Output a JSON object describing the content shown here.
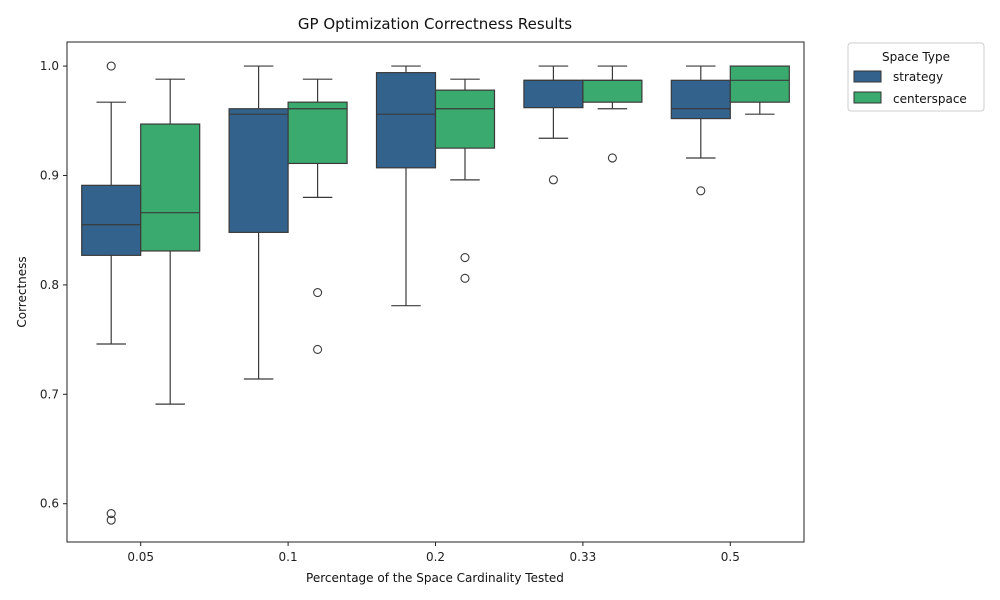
{
  "chart_data": {
    "type": "box",
    "title": "GP Optimization Correctness Results",
    "xlabel": "Percentage of the Space Cardinality Tested",
    "ylabel": "Correctness",
    "categories": [
      "0.05",
      "0.1",
      "0.2",
      "0.33",
      "0.5"
    ],
    "ylim": [
      0.565,
      1.022
    ],
    "yticks": [
      "0.6",
      "0.7",
      "0.8",
      "0.9",
      "1.0"
    ],
    "grid": false,
    "legend": {
      "title": "Space Type",
      "placement": "upper-right-outside"
    },
    "series": [
      {
        "name": "strategy",
        "color": "#33638d",
        "boxes": [
          {
            "category": "0.05",
            "whisker_low": 0.746,
            "q1": 0.827,
            "median": 0.855,
            "q3": 0.891,
            "whisker_high": 0.967,
            "outliers": [
              1.0,
              0.591,
              0.585
            ]
          },
          {
            "category": "0.1",
            "whisker_low": 0.714,
            "q1": 0.848,
            "median": 0.956,
            "q3": 0.961,
            "whisker_high": 1.0,
            "outliers": []
          },
          {
            "category": "0.2",
            "whisker_low": 0.781,
            "q1": 0.907,
            "median": 0.956,
            "q3": 0.994,
            "whisker_high": 1.0,
            "outliers": []
          },
          {
            "category": "0.33",
            "whisker_low": 0.934,
            "q1": 0.962,
            "median": 0.987,
            "q3": 0.987,
            "whisker_high": 1.0,
            "outliers": [
              0.896
            ]
          },
          {
            "category": "0.5",
            "whisker_low": 0.916,
            "q1": 0.952,
            "median": 0.961,
            "q3": 0.987,
            "whisker_high": 1.0,
            "outliers": [
              0.886
            ]
          }
        ]
      },
      {
        "name": "centerspace",
        "color": "#3aaa6e",
        "boxes": [
          {
            "category": "0.05",
            "whisker_low": 0.691,
            "q1": 0.831,
            "median": 0.866,
            "q3": 0.947,
            "whisker_high": 0.988,
            "outliers": []
          },
          {
            "category": "0.1",
            "whisker_low": 0.88,
            "q1": 0.911,
            "median": 0.961,
            "q3": 0.967,
            "whisker_high": 0.988,
            "outliers": [
              0.793,
              0.741
            ]
          },
          {
            "category": "0.2",
            "whisker_low": 0.896,
            "q1": 0.925,
            "median": 0.961,
            "q3": 0.978,
            "whisker_high": 0.988,
            "outliers": [
              0.825,
              0.806
            ]
          },
          {
            "category": "0.33",
            "whisker_low": 0.961,
            "q1": 0.967,
            "median": 0.987,
            "q3": 0.987,
            "whisker_high": 1.0,
            "outliers": [
              0.916
            ]
          },
          {
            "category": "0.5",
            "whisker_low": 0.956,
            "q1": 0.967,
            "median": 0.987,
            "q3": 1.0,
            "whisker_high": 1.0,
            "outliers": []
          }
        ]
      }
    ]
  }
}
